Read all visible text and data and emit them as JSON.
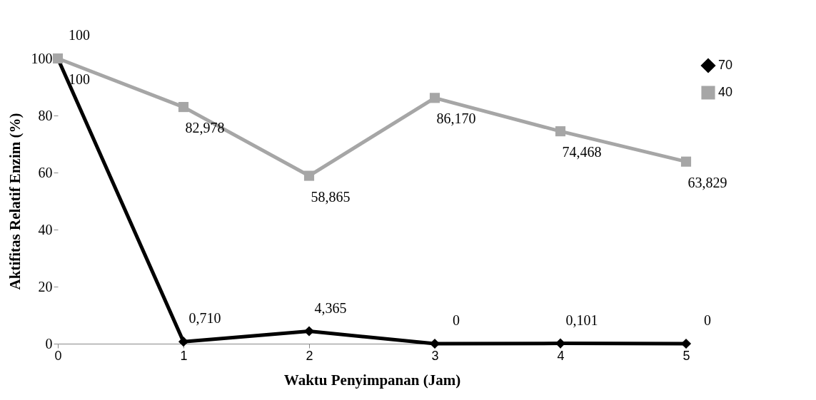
{
  "chart_data": {
    "type": "line",
    "xlabel": "Waktu Penyimpanan (Jam)",
    "ylabel": "Aktifitas Relatif Enzim (%)",
    "x": [
      0,
      1,
      2,
      3,
      4,
      5
    ],
    "series": [
      {
        "name": "70",
        "color": "#000000",
        "marker": "diamond",
        "values": [
          100,
          0.71,
          4.365,
          0,
          0.101,
          0
        ],
        "value_labels": [
          "100",
          "0,710",
          "4,365",
          "0",
          "0,101",
          "0"
        ]
      },
      {
        "name": "40",
        "color": "#a6a6a6",
        "marker": "square",
        "values": [
          100,
          82.978,
          58.865,
          86.17,
          74.468,
          63.829
        ],
        "value_labels": [
          "100",
          "82,978",
          "58,865",
          "86,170",
          "74,468",
          "63,829"
        ]
      }
    ],
    "xlim": [
      0,
      5
    ],
    "xticks": [
      0,
      1,
      2,
      3,
      4,
      5
    ],
    "ylim": [
      0,
      100
    ],
    "yticks": [
      0,
      20,
      40,
      60,
      80,
      100
    ],
    "grid": false,
    "legend": "right"
  }
}
